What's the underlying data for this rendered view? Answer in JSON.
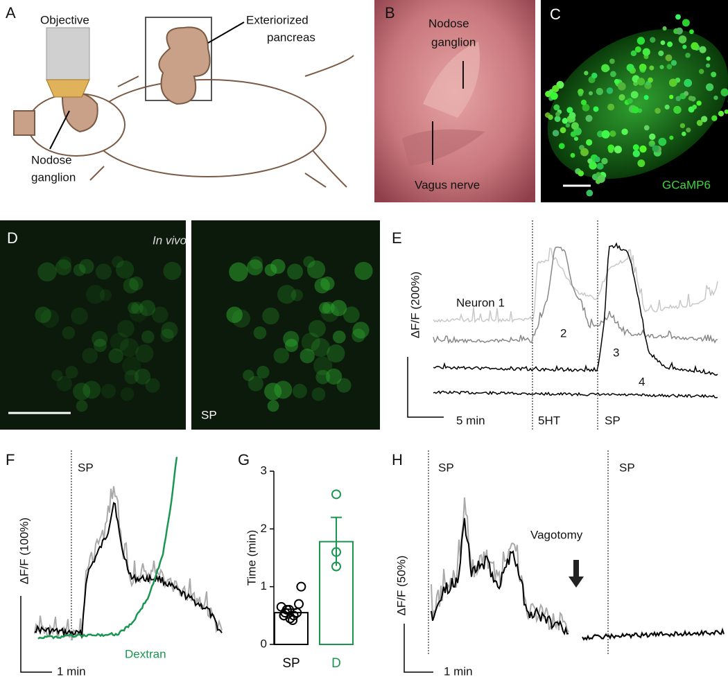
{
  "figure": {
    "panel_a": {
      "letter": "A",
      "objective": "Objective",
      "pancreas": [
        "Exteriorized",
        "pancreas"
      ],
      "ganglion": [
        "Nodose",
        "ganglion"
      ]
    },
    "panel_b": {
      "letter": "B",
      "ganglion": [
        "Nodose",
        "ganglion"
      ],
      "nerve": "Vagus nerve"
    },
    "panel_c": {
      "letter": "C",
      "label": "GCaMP6"
    },
    "panel_d": {
      "letter": "D",
      "condition": "In vivo",
      "stimulus": "SP"
    },
    "panel_e": {
      "letter": "E",
      "ylabel": "ΔF/F (200%)",
      "neurons": [
        "Neuron 1",
        "2",
        "3",
        "4"
      ],
      "time_scale": "5 min",
      "stimuli": [
        "5HT",
        "SP"
      ]
    },
    "panel_f": {
      "letter": "F",
      "stimulus": "SP",
      "ylabel": "ΔF/F (100%)",
      "time_scale": "1 min",
      "tracer": "Dextran"
    },
    "panel_h": {
      "letter": "H",
      "stimuli": [
        "SP",
        "SP"
      ],
      "event": "Vagotomy",
      "ylabel": "ΔF/F (50%)",
      "time_scale": "1 min"
    }
  },
  "chart_data": {
    "type": "bar",
    "letter": "G",
    "ylabel": "Time (min)",
    "categories": [
      "SP",
      "D"
    ],
    "values": [
      0.55,
      1.78
    ],
    "errors": [
      0.06,
      0.42
    ],
    "points": [
      [
        0.45,
        0.5,
        0.55,
        0.6,
        0.5,
        0.65,
        0.55,
        0.42,
        0.7,
        1.0,
        0.6,
        0.5
      ],
      [
        2.6,
        1.6,
        1.35
      ]
    ],
    "colors": [
      "#000000",
      "#1a9650"
    ],
    "ylim": [
      0,
      3
    ],
    "yticks": [
      0,
      1,
      2,
      3
    ]
  }
}
